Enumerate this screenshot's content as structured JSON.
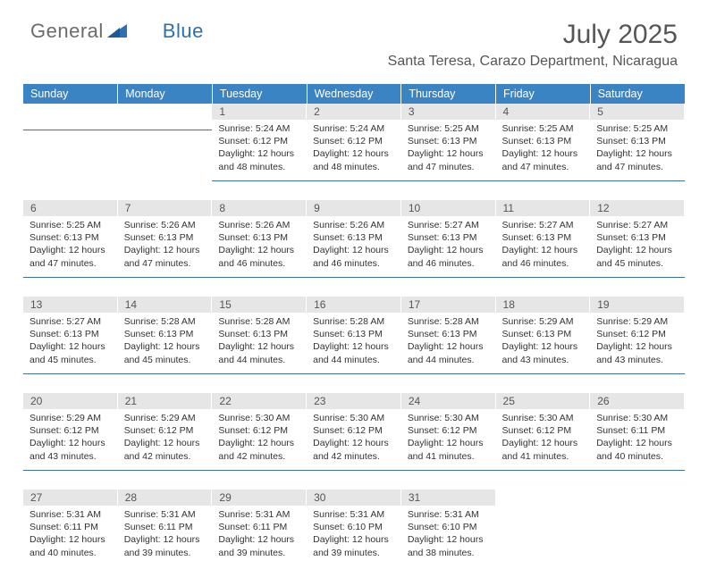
{
  "brand": {
    "part1": "General",
    "part2": "Blue"
  },
  "title": "July 2025",
  "location": "Santa Teresa, Carazo Department, Nicaragua",
  "colors": {
    "header_bg": "#3b84c4",
    "header_text": "#ffffff",
    "daynum_bg": "#e6e6e6",
    "rule": "#3b6fa0",
    "brand_gray": "#6b6b6b",
    "brand_blue": "#2a72b5"
  },
  "weekdays": [
    "Sunday",
    "Monday",
    "Tuesday",
    "Wednesday",
    "Thursday",
    "Friday",
    "Saturday"
  ],
  "weeks": [
    [
      null,
      null,
      {
        "n": "1",
        "sr": "5:24 AM",
        "ss": "6:12 PM",
        "dl": "12 hours and 48 minutes."
      },
      {
        "n": "2",
        "sr": "5:24 AM",
        "ss": "6:12 PM",
        "dl": "12 hours and 48 minutes."
      },
      {
        "n": "3",
        "sr": "5:25 AM",
        "ss": "6:13 PM",
        "dl": "12 hours and 47 minutes."
      },
      {
        "n": "4",
        "sr": "5:25 AM",
        "ss": "6:13 PM",
        "dl": "12 hours and 47 minutes."
      },
      {
        "n": "5",
        "sr": "5:25 AM",
        "ss": "6:13 PM",
        "dl": "12 hours and 47 minutes."
      }
    ],
    [
      {
        "n": "6",
        "sr": "5:25 AM",
        "ss": "6:13 PM",
        "dl": "12 hours and 47 minutes."
      },
      {
        "n": "7",
        "sr": "5:26 AM",
        "ss": "6:13 PM",
        "dl": "12 hours and 47 minutes."
      },
      {
        "n": "8",
        "sr": "5:26 AM",
        "ss": "6:13 PM",
        "dl": "12 hours and 46 minutes."
      },
      {
        "n": "9",
        "sr": "5:26 AM",
        "ss": "6:13 PM",
        "dl": "12 hours and 46 minutes."
      },
      {
        "n": "10",
        "sr": "5:27 AM",
        "ss": "6:13 PM",
        "dl": "12 hours and 46 minutes."
      },
      {
        "n": "11",
        "sr": "5:27 AM",
        "ss": "6:13 PM",
        "dl": "12 hours and 46 minutes."
      },
      {
        "n": "12",
        "sr": "5:27 AM",
        "ss": "6:13 PM",
        "dl": "12 hours and 45 minutes."
      }
    ],
    [
      {
        "n": "13",
        "sr": "5:27 AM",
        "ss": "6:13 PM",
        "dl": "12 hours and 45 minutes."
      },
      {
        "n": "14",
        "sr": "5:28 AM",
        "ss": "6:13 PM",
        "dl": "12 hours and 45 minutes."
      },
      {
        "n": "15",
        "sr": "5:28 AM",
        "ss": "6:13 PM",
        "dl": "12 hours and 44 minutes."
      },
      {
        "n": "16",
        "sr": "5:28 AM",
        "ss": "6:13 PM",
        "dl": "12 hours and 44 minutes."
      },
      {
        "n": "17",
        "sr": "5:28 AM",
        "ss": "6:13 PM",
        "dl": "12 hours and 44 minutes."
      },
      {
        "n": "18",
        "sr": "5:29 AM",
        "ss": "6:13 PM",
        "dl": "12 hours and 43 minutes."
      },
      {
        "n": "19",
        "sr": "5:29 AM",
        "ss": "6:12 PM",
        "dl": "12 hours and 43 minutes."
      }
    ],
    [
      {
        "n": "20",
        "sr": "5:29 AM",
        "ss": "6:12 PM",
        "dl": "12 hours and 43 minutes."
      },
      {
        "n": "21",
        "sr": "5:29 AM",
        "ss": "6:12 PM",
        "dl": "12 hours and 42 minutes."
      },
      {
        "n": "22",
        "sr": "5:30 AM",
        "ss": "6:12 PM",
        "dl": "12 hours and 42 minutes."
      },
      {
        "n": "23",
        "sr": "5:30 AM",
        "ss": "6:12 PM",
        "dl": "12 hours and 42 minutes."
      },
      {
        "n": "24",
        "sr": "5:30 AM",
        "ss": "6:12 PM",
        "dl": "12 hours and 41 minutes."
      },
      {
        "n": "25",
        "sr": "5:30 AM",
        "ss": "6:12 PM",
        "dl": "12 hours and 41 minutes."
      },
      {
        "n": "26",
        "sr": "5:30 AM",
        "ss": "6:11 PM",
        "dl": "12 hours and 40 minutes."
      }
    ],
    [
      {
        "n": "27",
        "sr": "5:31 AM",
        "ss": "6:11 PM",
        "dl": "12 hours and 40 minutes."
      },
      {
        "n": "28",
        "sr": "5:31 AM",
        "ss": "6:11 PM",
        "dl": "12 hours and 39 minutes."
      },
      {
        "n": "29",
        "sr": "5:31 AM",
        "ss": "6:11 PM",
        "dl": "12 hours and 39 minutes."
      },
      {
        "n": "30",
        "sr": "5:31 AM",
        "ss": "6:10 PM",
        "dl": "12 hours and 39 minutes."
      },
      {
        "n": "31",
        "sr": "5:31 AM",
        "ss": "6:10 PM",
        "dl": "12 hours and 38 minutes."
      },
      null,
      null
    ]
  ],
  "labels": {
    "sunrise": "Sunrise:",
    "sunset": "Sunset:",
    "daylight": "Daylight:"
  }
}
